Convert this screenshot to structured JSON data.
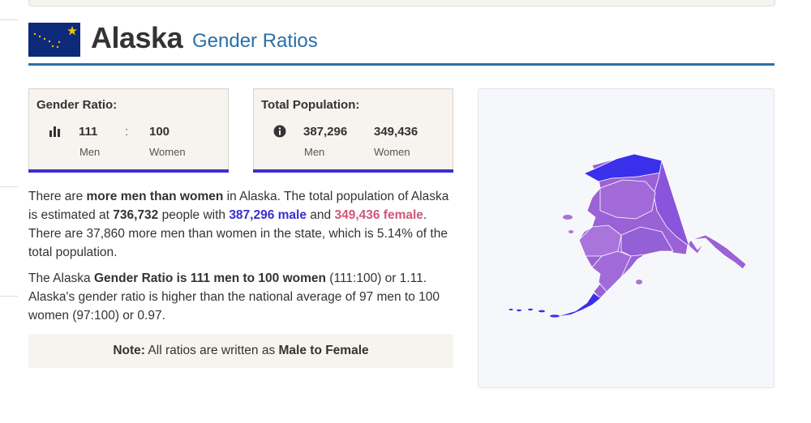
{
  "page": {
    "title": "Alaska",
    "subtitle": "Gender Ratios"
  },
  "colors": {
    "accent_blue": "#2a6fa8",
    "male": "#3a2fcf",
    "female": "#d0577a",
    "card_bg": "#f7f4ef",
    "map_fill_main": "#9a62d6",
    "map_fill_dark": "#3a2fea"
  },
  "gender_ratio_card": {
    "label": "Gender Ratio:",
    "icon": "bar-chart-icon",
    "men_value": "111",
    "separator": ":",
    "women_value": "100",
    "men_label": "Men",
    "women_label": "Women"
  },
  "population_card": {
    "label": "Total Population:",
    "icon": "info-icon",
    "men_value": "387,296",
    "women_value": "349,436",
    "men_label": "Men",
    "women_label": "Women"
  },
  "paragraph1": {
    "t1": "There are ",
    "b1": "more men than women",
    "t2": " in Alaska. The total population of Alaska is estimated at ",
    "b2": "736,732",
    "t3": " people with ",
    "male": "387,296 male",
    "t4": " and ",
    "female": "349,436 female",
    "t5": ". There are 37,860 more men than women in the state, which is 5.14% of the total population."
  },
  "paragraph2": {
    "t1": "The Alaska ",
    "b1": "Gender Ratio is 111 men to 100 women",
    "t2": " (111:100) or 1.11. Alaska's gender ratio is higher than the national average of 97 men to 100 women (97:100) or 0.97."
  },
  "note": {
    "label": "Note:",
    "text": " All ratios are written as ",
    "bold": "Male to Female"
  }
}
